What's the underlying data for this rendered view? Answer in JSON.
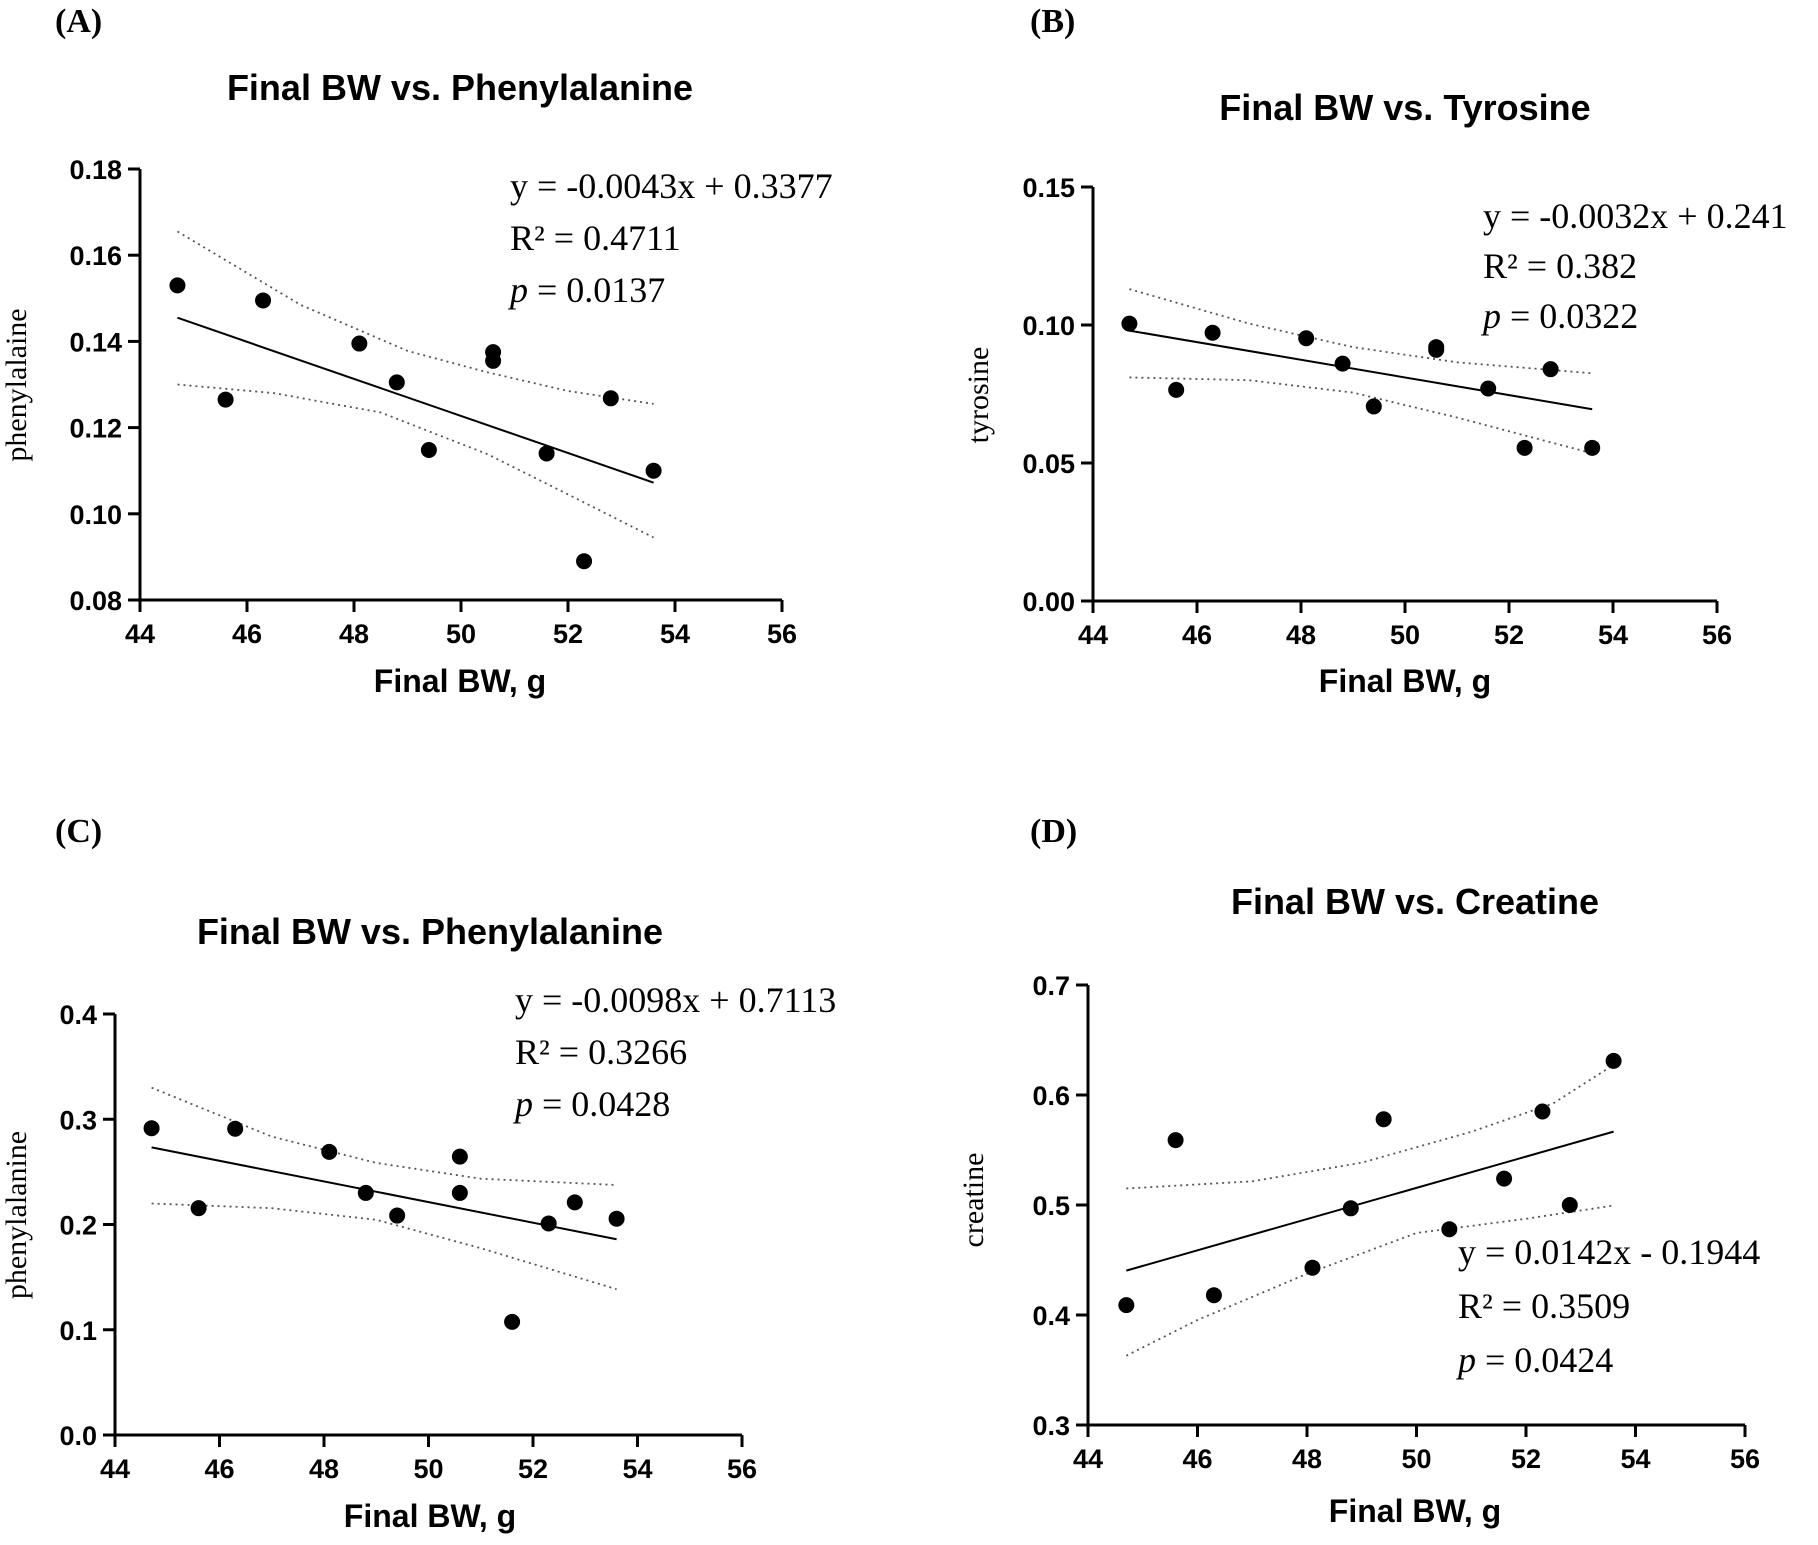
{
  "chart_data": [
    {
      "panel": "(A)",
      "type": "scatter",
      "title": "Final BW vs. Phenylalanine",
      "xlabel": "Final BW, g",
      "ylabel": "phenylalaine",
      "xlim": [
        44,
        56
      ],
      "ylim": [
        0.08,
        0.18
      ],
      "x_ticks": [
        44,
        46,
        48,
        50,
        52,
        54,
        56
      ],
      "y_ticks": [
        0.08,
        0.1,
        0.12,
        0.14,
        0.16,
        0.18
      ],
      "y_tick_labels": [
        "0.08",
        "0.10",
        "0.12",
        "0.14",
        "0.16",
        "0.18"
      ],
      "points": [
        [
          44.7,
          0.153
        ],
        [
          45.6,
          0.1265
        ],
        [
          46.3,
          0.1495
        ],
        [
          48.1,
          0.1395
        ],
        [
          48.8,
          0.1305
        ],
        [
          49.4,
          0.1148
        ],
        [
          50.6,
          0.1375
        ],
        [
          50.6,
          0.1355
        ],
        [
          51.6,
          0.114
        ],
        [
          52.3,
          0.089
        ],
        [
          52.8,
          0.1268
        ],
        [
          53.6,
          0.11
        ]
      ],
      "fit": {
        "slope": -0.0043,
        "intercept": 0.3377,
        "x_range": [
          44.7,
          53.6
        ]
      },
      "ci_upper": [
        [
          44.7,
          0.1655
        ],
        [
          47.0,
          0.1485
        ],
        [
          49.0,
          0.1378
        ],
        [
          50.5,
          0.1328
        ],
        [
          52.0,
          0.1285
        ],
        [
          53.6,
          0.1255
        ]
      ],
      "ci_lower": [
        [
          44.7,
          0.13
        ],
        [
          46.5,
          0.128
        ],
        [
          48.5,
          0.1235
        ],
        [
          50.5,
          0.1138
        ],
        [
          52.0,
          0.1045
        ],
        [
          53.6,
          0.0945
        ]
      ],
      "annotation": {
        "equation": "y = -0.0043x + 0.3377",
        "r2": "R² = 0.4711",
        "p_symbol": "p",
        "p_value": " = 0.0137",
        "anchor": "top-right"
      }
    },
    {
      "panel": "(B)",
      "type": "scatter",
      "title": "Final BW vs. Tyrosine",
      "xlabel": "Final BW, g",
      "ylabel": "tyrosine",
      "xlim": [
        44,
        56
      ],
      "ylim": [
        0,
        0.15
      ],
      "x_ticks": [
        44,
        46,
        48,
        50,
        52,
        54,
        56
      ],
      "y_ticks": [
        0,
        0.05,
        0.1,
        0.15
      ],
      "y_tick_labels": [
        "0.00",
        "0.05",
        "0.10",
        "0.15"
      ],
      "points": [
        [
          44.7,
          0.1005
        ],
        [
          45.6,
          0.0765
        ],
        [
          46.3,
          0.0972
        ],
        [
          48.1,
          0.0952
        ],
        [
          48.8,
          0.086
        ],
        [
          49.4,
          0.0705
        ],
        [
          50.6,
          0.092
        ],
        [
          50.6,
          0.091
        ],
        [
          51.6,
          0.077
        ],
        [
          52.3,
          0.0555
        ],
        [
          52.8,
          0.084
        ],
        [
          53.6,
          0.0555
        ]
      ],
      "fit": {
        "slope": -0.0032,
        "intercept": 0.241,
        "x_range": [
          44.7,
          53.6
        ]
      },
      "ci_upper": [
        [
          44.7,
          0.113
        ],
        [
          47.0,
          0.1005
        ],
        [
          49.0,
          0.092
        ],
        [
          51.0,
          0.0865
        ],
        [
          53.6,
          0.0825
        ]
      ],
      "ci_lower": [
        [
          44.7,
          0.081
        ],
        [
          47.0,
          0.08
        ],
        [
          49.0,
          0.0755
        ],
        [
          51.0,
          0.0665
        ],
        [
          53.6,
          0.0535
        ]
      ],
      "annotation": {
        "equation": "y = -0.0032x + 0.241",
        "r2": "R² = 0.382",
        "p_symbol": "p",
        "p_value": " = 0.0322",
        "anchor": "top-right"
      }
    },
    {
      "panel": "(C)",
      "type": "scatter",
      "title": "Final BW vs. Phenylalanine",
      "xlabel": "Final BW, g",
      "ylabel": "phenylalanine",
      "xlim": [
        44,
        56
      ],
      "ylim": [
        0,
        0.4
      ],
      "x_ticks": [
        44,
        46,
        48,
        50,
        52,
        54,
        56
      ],
      "y_ticks": [
        0,
        0.1,
        0.2,
        0.3,
        0.4
      ],
      "y_tick_labels": [
        "0.0",
        "0.1",
        "0.2",
        "0.3",
        "0.4"
      ],
      "points": [
        [
          44.7,
          0.2915
        ],
        [
          45.6,
          0.2155
        ],
        [
          46.3,
          0.291
        ],
        [
          48.1,
          0.269
        ],
        [
          48.8,
          0.23
        ],
        [
          49.4,
          0.2085
        ],
        [
          50.6,
          0.2645
        ],
        [
          50.6,
          0.23
        ],
        [
          51.6,
          0.1075
        ],
        [
          52.3,
          0.201
        ],
        [
          52.8,
          0.221
        ],
        [
          53.6,
          0.2055
        ]
      ],
      "fit": {
        "slope": -0.0098,
        "intercept": 0.7113,
        "x_range": [
          44.7,
          53.6
        ]
      },
      "ci_upper": [
        [
          44.7,
          0.33
        ],
        [
          47.0,
          0.2835
        ],
        [
          49.0,
          0.2585
        ],
        [
          51.0,
          0.2435
        ],
        [
          53.6,
          0.2375
        ]
      ],
      "ci_lower": [
        [
          44.7,
          0.22
        ],
        [
          47.0,
          0.2155
        ],
        [
          49.0,
          0.2045
        ],
        [
          51.0,
          0.1775
        ],
        [
          53.6,
          0.1385
        ]
      ],
      "annotation": {
        "equation": "y = -0.0098x + 0.7113",
        "r2": "R² = 0.3266",
        "p_symbol": "p",
        "p_value": " = 0.0428",
        "anchor": "top-right"
      }
    },
    {
      "panel": "(D)",
      "type": "scatter",
      "title": "Final BW vs. Creatine",
      "xlabel": "Final BW, g",
      "ylabel": "creatine",
      "xlim": [
        44,
        56
      ],
      "ylim": [
        0.3,
        0.7
      ],
      "x_ticks": [
        44,
        46,
        48,
        50,
        52,
        54,
        56
      ],
      "y_ticks": [
        0.3,
        0.4,
        0.5,
        0.6,
        0.7
      ],
      "y_tick_labels": [
        "0.3",
        "0.4",
        "0.5",
        "0.6",
        "0.7"
      ],
      "points": [
        [
          44.7,
          0.409
        ],
        [
          45.6,
          0.559
        ],
        [
          46.3,
          0.418
        ],
        [
          48.1,
          0.443
        ],
        [
          48.8,
          0.497
        ],
        [
          49.4,
          0.578
        ],
        [
          50.6,
          0.478
        ],
        [
          51.6,
          0.524
        ],
        [
          52.3,
          0.585
        ],
        [
          52.8,
          0.5
        ],
        [
          53.6,
          0.631
        ]
      ],
      "fit": {
        "slope": 0.0142,
        "intercept": -0.1944,
        "x_range": [
          44.7,
          53.6
        ]
      },
      "ci_upper": [
        [
          44.7,
          0.515
        ],
        [
          47.0,
          0.5215
        ],
        [
          49.0,
          0.5385
        ],
        [
          51.0,
          0.5665
        ],
        [
          52.5,
          0.5925
        ],
        [
          53.6,
          0.6275
        ]
      ],
      "ci_lower": [
        [
          44.7,
          0.363
        ],
        [
          46.0,
          0.3955
        ],
        [
          48.0,
          0.4375
        ],
        [
          50.0,
          0.4745
        ],
        [
          52.0,
          0.4875
        ],
        [
          53.6,
          0.4995
        ]
      ],
      "annotation": {
        "equation": "y = 0.0142x - 0.1944",
        "r2": "R² = 0.3509",
        "p_symbol": "p",
        "p_value": " = 0.0424",
        "anchor": "bottom-right"
      }
    }
  ]
}
